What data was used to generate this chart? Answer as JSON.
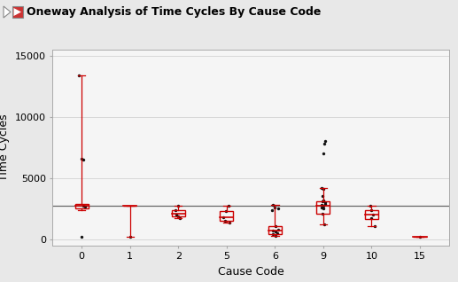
{
  "title": "Oneway Analysis of Time Cycles By Cause Code",
  "xlabel": "Cause Code",
  "ylabel": "Time Cycles",
  "ylim": [
    -500,
    15500
  ],
  "yticks": [
    0,
    5000,
    10000,
    15000
  ],
  "grand_mean": 2700,
  "background_color": "#e8e8e8",
  "plot_bg": "#f5f5f5",
  "categories": [
    "0",
    "1",
    "2",
    "5",
    "6",
    "9",
    "10",
    "15"
  ],
  "box_data": {
    "0": {
      "median": 2700,
      "q1": 2550,
      "q3": 2850,
      "whislo": 2400,
      "whishi": 13400
    },
    "1": {
      "median": 2700,
      "q1": 2700,
      "q3": 2700,
      "whislo": 200,
      "whishi": 2700
    },
    "2": {
      "median": 2050,
      "q1": 1850,
      "q3": 2400,
      "whislo": 1750,
      "whishi": 2700
    },
    "5": {
      "median": 1800,
      "q1": 1500,
      "q3": 2300,
      "whislo": 1350,
      "whishi": 2700
    },
    "6": {
      "median": 700,
      "q1": 450,
      "q3": 1100,
      "whislo": 300,
      "whishi": 2800
    },
    "9": {
      "median": 2700,
      "q1": 2100,
      "q3": 3100,
      "whislo": 1200,
      "whishi": 4200
    },
    "10": {
      "median": 2000,
      "q1": 1650,
      "q3": 2400,
      "whislo": 1100,
      "whishi": 2700
    },
    "15": {
      "median": 200,
      "q1": 200,
      "q3": 200,
      "whislo": 200,
      "whishi": 200
    }
  },
  "scatter_data": {
    "0": [
      13400,
      6500,
      6600,
      2700,
      2650,
      200
    ],
    "1": [
      200
    ],
    "2": [
      2700,
      2400,
      2000,
      1900,
      1750
    ],
    "5": [
      2700,
      2300,
      1800,
      1500,
      1350
    ],
    "6": [
      2800,
      2600,
      2500,
      2400,
      1100,
      800,
      700,
      600,
      500,
      400,
      300
    ],
    "9": [
      8000,
      7800,
      7000,
      4200,
      4100,
      3500,
      3200,
      3100,
      3000,
      2900,
      2800,
      2700,
      2600,
      2500,
      2100,
      1200
    ],
    "10": [
      2700,
      2400,
      2000,
      1700,
      1100
    ],
    "15": [
      200
    ]
  },
  "box_color": "#cc0000",
  "median_color": "#cc0000",
  "scatter_color": "#111111",
  "grand_mean_color": "#666666",
  "title_bg": "#d4d0c8",
  "title_fontsize": 9,
  "axis_fontsize": 8,
  "label_fontsize": 9
}
